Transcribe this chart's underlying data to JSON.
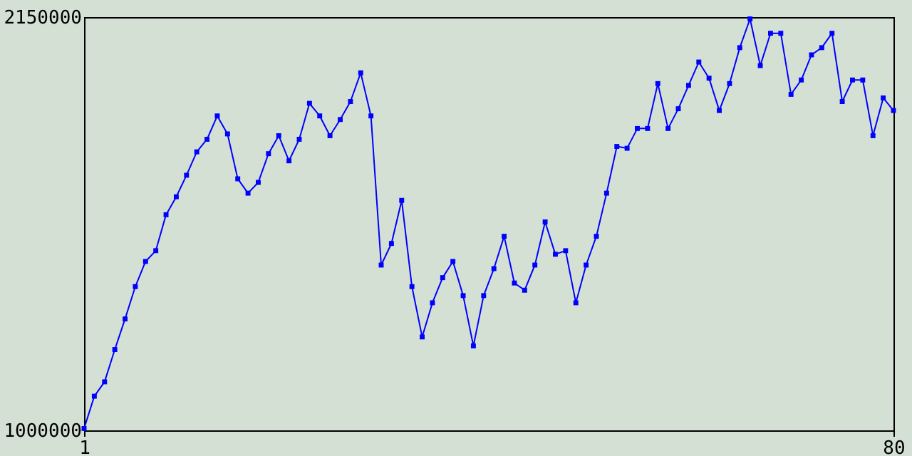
{
  "chart_data": {
    "type": "line",
    "x": [
      1,
      2,
      3,
      4,
      5,
      6,
      7,
      8,
      9,
      10,
      11,
      12,
      13,
      14,
      15,
      16,
      17,
      18,
      19,
      20,
      21,
      22,
      23,
      24,
      25,
      26,
      27,
      28,
      29,
      30,
      31,
      32,
      33,
      34,
      35,
      36,
      37,
      38,
      39,
      40,
      41,
      42,
      43,
      44,
      45,
      46,
      47,
      48,
      49,
      50,
      51,
      52,
      53,
      54,
      55,
      56,
      57,
      58,
      59,
      60,
      61,
      62,
      63,
      64,
      65,
      66,
      67,
      68,
      69,
      70,
      71,
      72,
      73,
      74,
      75,
      76,
      77,
      78,
      79,
      80
    ],
    "series": [
      {
        "color": "#0000ff",
        "values": [
          1005000,
          1095000,
          1135000,
          1225000,
          1310000,
          1400000,
          1470000,
          1500000,
          1600000,
          1650000,
          1710000,
          1775000,
          1810000,
          1875000,
          1825000,
          1700000,
          1660000,
          1690000,
          1770000,
          1820000,
          1750000,
          1810000,
          1910000,
          1875000,
          1820000,
          1865000,
          1915000,
          1995000,
          1875000,
          1460000,
          1520000,
          1640000,
          1400000,
          1260000,
          1355000,
          1425000,
          1470000,
          1375000,
          1235000,
          1375000,
          1450000,
          1540000,
          1410000,
          1390000,
          1460000,
          1580000,
          1490000,
          1500000,
          1355000,
          1460000,
          1540000,
          1660000,
          1790000,
          1785000,
          1840000,
          1840000,
          1965000,
          1840000,
          1895000,
          1960000,
          2025000,
          1980000,
          1890000,
          1965000,
          2065000,
          2145000,
          2015000,
          2105000,
          2105000,
          1935000,
          1975000,
          2045000,
          2065000,
          2105000,
          1915000,
          1975000,
          1975000,
          1820000,
          1925000,
          1890000
        ]
      }
    ],
    "xlim": [
      1,
      80
    ],
    "xticks": [
      1,
      80
    ],
    "ylim": [
      1000000,
      2150000
    ],
    "yticks": [
      1000000,
      2150000
    ],
    "marker": "square",
    "line_style": "solid",
    "grid": false,
    "legend": false
  }
}
